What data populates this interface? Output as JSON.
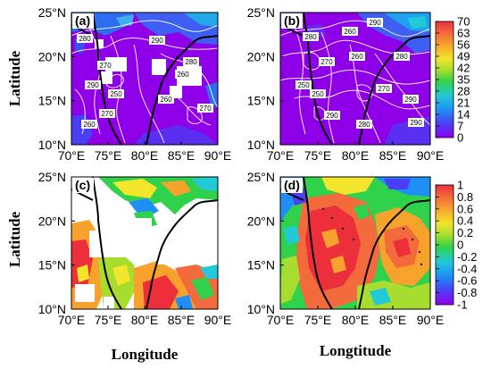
{
  "chart_data": [
    {
      "type": "heatmap",
      "panel_label": "(a)",
      "ylabel": "Latitude",
      "xlabel": "",
      "x_ticks": [
        "70°E",
        "75°E",
        "80°E",
        "85°E",
        "90°E"
      ],
      "y_ticks": [
        "10°N",
        "15°N",
        "20°N",
        "25°N"
      ],
      "xlim": [
        70,
        90
      ],
      "ylim": [
        10,
        25
      ],
      "contour_labels": [
        "280",
        "290",
        "270",
        "260",
        "250",
        "260",
        "270",
        "290",
        "280",
        "260",
        "270"
      ],
      "colorbar": false
    },
    {
      "type": "heatmap",
      "panel_label": "(b)",
      "xlabel": "",
      "x_ticks": [
        "70°E",
        "75°E",
        "80°E",
        "85°E",
        "90°E"
      ],
      "y_ticks": [
        "10°N",
        "15°N",
        "20°N",
        "25°N"
      ],
      "xlim": [
        70,
        90
      ],
      "ylim": [
        10,
        25
      ],
      "contour_labels": [
        "280",
        "260",
        "290",
        "270",
        "250",
        "260",
        "280",
        "250",
        "270",
        "290",
        "290",
        "280",
        "290"
      ],
      "colorbar": {
        "ticks": [
          "70",
          "63",
          "56",
          "49",
          "42",
          "35",
          "28",
          "21",
          "14",
          "7",
          "0"
        ],
        "min": 0,
        "max": 70
      }
    },
    {
      "type": "heatmap",
      "panel_label": "(c)",
      "ylabel": "Latitude",
      "xlabel": "Longitude",
      "x_ticks": [
        "70°E",
        "75°E",
        "80°E",
        "85°E",
        "90°E"
      ],
      "y_ticks": [
        "10°N",
        "15°N",
        "20°N",
        "25°N"
      ],
      "xlim": [
        70,
        90
      ],
      "ylim": [
        10,
        25
      ],
      "colorbar": false
    },
    {
      "type": "heatmap",
      "panel_label": "(d)",
      "xlabel": "Longtitude",
      "x_ticks": [
        "70°E",
        "75°E",
        "80°E",
        "85°E",
        "90°E"
      ],
      "y_ticks": [
        "10°N",
        "15°N",
        "20°N",
        "25°N"
      ],
      "xlim": [
        70,
        90
      ],
      "ylim": [
        10,
        25
      ],
      "colorbar": {
        "ticks": [
          "1",
          "0.8",
          "0.6",
          "0.4",
          "0.2",
          "0",
          "-0.2",
          "-0.4",
          "-0.6",
          "-0.8",
          "-1"
        ],
        "min": -1,
        "max": 1
      }
    }
  ]
}
